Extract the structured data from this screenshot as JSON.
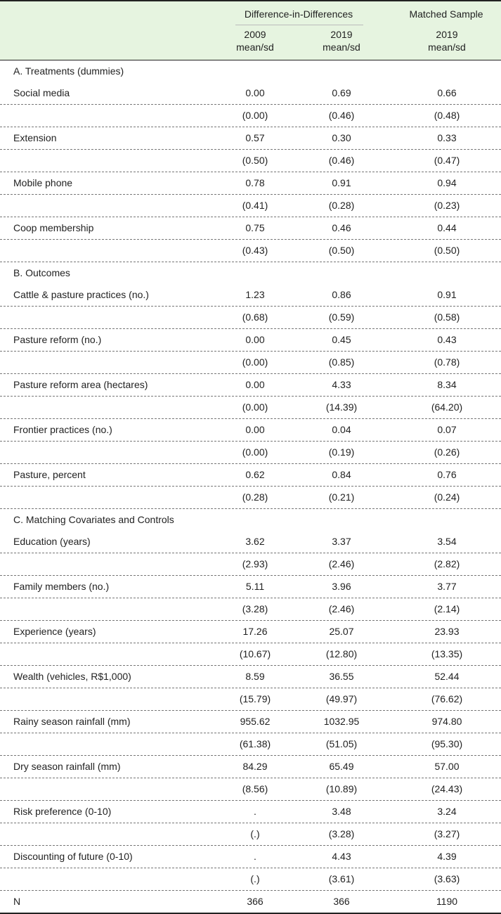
{
  "header": {
    "group_did": "Difference-in-Differences",
    "group_matched": "Matched Sample",
    "col1_year": "2009",
    "col1_stat": "mean/sd",
    "col2_year": "2019",
    "col2_stat": "mean/sd",
    "col3_year": "2019",
    "col3_stat": "mean/sd"
  },
  "rows": [
    {
      "label": "A. Treatments (dummies)",
      "section": true
    },
    {
      "label": "Social media",
      "v": [
        "0.00",
        "0.69",
        "0.66"
      ]
    },
    {
      "label": "",
      "v": [
        "(0.00)",
        "(0.46)",
        "(0.48)"
      ]
    },
    {
      "label": "Extension",
      "v": [
        "0.57",
        "0.30",
        "0.33"
      ]
    },
    {
      "label": "",
      "v": [
        "(0.50)",
        "(0.46)",
        "(0.47)"
      ]
    },
    {
      "label": "Mobile phone",
      "v": [
        "0.78",
        "0.91",
        "0.94"
      ]
    },
    {
      "label": "",
      "v": [
        "(0.41)",
        "(0.28)",
        "(0.23)"
      ]
    },
    {
      "label": "Coop membership",
      "v": [
        "0.75",
        "0.46",
        "0.44"
      ]
    },
    {
      "label": "",
      "v": [
        "(0.43)",
        "(0.50)",
        "(0.50)"
      ]
    },
    {
      "label": "B. Outcomes",
      "section": true
    },
    {
      "label": "Cattle & pasture practices (no.)",
      "v": [
        "1.23",
        "0.86",
        "0.91"
      ]
    },
    {
      "label": "",
      "v": [
        "(0.68)",
        "(0.59)",
        "(0.58)"
      ]
    },
    {
      "label": "Pasture reform (no.)",
      "v": [
        "0.00",
        "0.45",
        "0.43"
      ]
    },
    {
      "label": "",
      "v": [
        "(0.00)",
        "(0.85)",
        "(0.78)"
      ]
    },
    {
      "label": "Pasture reform area (hectares)",
      "v": [
        "0.00",
        "4.33",
        "8.34"
      ]
    },
    {
      "label": "",
      "v": [
        "(0.00)",
        "(14.39)",
        "(64.20)"
      ]
    },
    {
      "label": "Frontier practices (no.)",
      "v": [
        "0.00",
        "0.04",
        "0.07"
      ]
    },
    {
      "label": "",
      "v": [
        "(0.00)",
        "(0.19)",
        "(0.26)"
      ]
    },
    {
      "label": "Pasture, percent",
      "v": [
        "0.62",
        "0.84",
        "0.76"
      ]
    },
    {
      "label": "",
      "v": [
        "(0.28)",
        "(0.21)",
        "(0.24)"
      ]
    },
    {
      "label": "C. Matching Covariates and Controls",
      "section": true
    },
    {
      "label": "Education (years)",
      "v": [
        "3.62",
        "3.37",
        "3.54"
      ]
    },
    {
      "label": "",
      "v": [
        "(2.93)",
        "(2.46)",
        "(2.82)"
      ]
    },
    {
      "label": "Family members (no.)",
      "v": [
        "5.11",
        "3.96",
        "3.77"
      ]
    },
    {
      "label": "",
      "v": [
        "(3.28)",
        "(2.46)",
        "(2.14)"
      ]
    },
    {
      "label": "Experience (years)",
      "v": [
        "17.26",
        "25.07",
        "23.93"
      ]
    },
    {
      "label": "",
      "v": [
        "(10.67)",
        "(12.80)",
        "(13.35)"
      ]
    },
    {
      "label": "Wealth (vehicles, R$1,000)",
      "v": [
        "8.59",
        "36.55",
        "52.44"
      ]
    },
    {
      "label": "",
      "v": [
        "(15.79)",
        "(49.97)",
        "(76.62)"
      ]
    },
    {
      "label": "Rainy season rainfall (mm)",
      "v": [
        "955.62",
        "1032.95",
        "974.80"
      ]
    },
    {
      "label": "",
      "v": [
        "(61.38)",
        "(51.05)",
        "(95.30)"
      ]
    },
    {
      "label": "Dry season rainfall (mm)",
      "v": [
        "84.29",
        "65.49",
        "57.00"
      ]
    },
    {
      "label": "",
      "v": [
        "(8.56)",
        "(10.89)",
        "(24.43)"
      ]
    },
    {
      "label": "Risk preference (0-10)",
      "v": [
        ".",
        "3.48",
        "3.24"
      ]
    },
    {
      "label": "",
      "v": [
        "(.)",
        "(3.28)",
        "(3.27)"
      ]
    },
    {
      "label": "Discounting of future (0-10)",
      "v": [
        ".",
        "4.43",
        "4.39"
      ]
    },
    {
      "label": "",
      "v": [
        "(.)",
        "(3.61)",
        "(3.63)"
      ]
    },
    {
      "label": "N",
      "v": [
        "366",
        "366",
        "1190"
      ]
    }
  ]
}
